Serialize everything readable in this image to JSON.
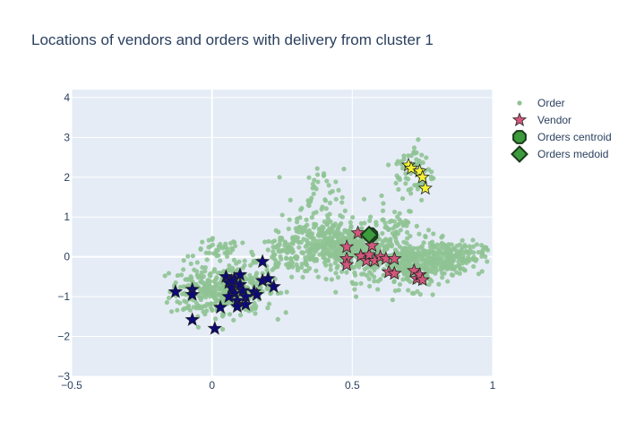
{
  "chart_data": {
    "type": "scatter",
    "title": "Locations of vendors and orders with delivery from cluster 1",
    "xlabel": "",
    "ylabel": "",
    "xlim": [
      -0.5,
      1.0
    ],
    "ylim": [
      -3.0,
      4.2
    ],
    "x_ticks": [
      -0.5,
      0,
      0.5,
      1
    ],
    "x_tick_labels": [
      "−0.5",
      "0",
      "0.5",
      "1"
    ],
    "y_ticks": [
      -3,
      -2,
      -1,
      0,
      1,
      2,
      3,
      4
    ],
    "y_tick_labels": [
      "−3",
      "−2",
      "−1",
      "0",
      "1",
      "2",
      "3",
      "4"
    ],
    "grid": true,
    "legend_position": "top-right",
    "colors": {
      "order": "#8fc393",
      "vendor_cluster_1": "#d3567b",
      "vendor_cluster_2": "#0d0a78",
      "vendor_cluster_3": "#f2f233",
      "centroid": "#3c9b3c",
      "medoid": "#3c9b3c",
      "plot_bg": "#e5ecf6"
    },
    "series": [
      {
        "name": "Order",
        "marker": "circle",
        "order_groups": [
          {
            "cx": -0.03,
            "cy": -0.85,
            "sx": 0.06,
            "sy": 0.35,
            "n": 170
          },
          {
            "cx": 0.1,
            "cy": -0.8,
            "sx": 0.06,
            "sy": 0.3,
            "n": 220
          },
          {
            "cx": 0.02,
            "cy": 0.15,
            "sx": 0.04,
            "sy": 0.15,
            "n": 40
          },
          {
            "cx": 0.28,
            "cy": 0.1,
            "sx": 0.06,
            "sy": 0.25,
            "n": 120
          },
          {
            "cx": 0.42,
            "cy": 0.3,
            "sx": 0.07,
            "sy": 0.3,
            "n": 250
          },
          {
            "cx": 0.55,
            "cy": 0.1,
            "sx": 0.08,
            "sy": 0.35,
            "n": 300
          },
          {
            "cx": 0.72,
            "cy": -0.2,
            "sx": 0.06,
            "sy": 0.3,
            "n": 250
          },
          {
            "cx": 0.85,
            "cy": 0.0,
            "sx": 0.06,
            "sy": 0.2,
            "n": 180
          },
          {
            "cx": 0.37,
            "cy": 1.2,
            "sx": 0.05,
            "sy": 0.5,
            "n": 70
          },
          {
            "cx": 0.64,
            "cy": 0.9,
            "sx": 0.04,
            "sy": 0.3,
            "n": 40
          },
          {
            "cx": 0.72,
            "cy": 2.1,
            "sx": 0.035,
            "sy": 0.4,
            "n": 70
          }
        ]
      },
      {
        "name": "Vendor",
        "marker": "star",
        "points": [
          {
            "x": -0.13,
            "y": -0.88,
            "c": 2
          },
          {
            "x": -0.07,
            "y": -0.82,
            "c": 2
          },
          {
            "x": -0.07,
            "y": -0.95,
            "c": 2
          },
          {
            "x": -0.07,
            "y": -1.58,
            "c": 2
          },
          {
            "x": 0.01,
            "y": -1.8,
            "c": 2
          },
          {
            "x": 0.03,
            "y": -1.27,
            "c": 2
          },
          {
            "x": 0.05,
            "y": -0.5,
            "c": 2
          },
          {
            "x": 0.06,
            "y": -0.65,
            "c": 2
          },
          {
            "x": 0.07,
            "y": -0.78,
            "c": 2
          },
          {
            "x": 0.08,
            "y": -0.55,
            "c": 2
          },
          {
            "x": 0.08,
            "y": -0.92,
            "c": 2
          },
          {
            "x": 0.09,
            "y": -1.1,
            "c": 2
          },
          {
            "x": 0.09,
            "y": -1.25,
            "c": 2
          },
          {
            "x": 0.1,
            "y": -0.45,
            "c": 2
          },
          {
            "x": 0.1,
            "y": -0.7,
            "c": 2
          },
          {
            "x": 0.11,
            "y": -0.85,
            "c": 2
          },
          {
            "x": 0.12,
            "y": -1.0,
            "c": 2
          },
          {
            "x": 0.12,
            "y": -1.2,
            "c": 2
          },
          {
            "x": 0.15,
            "y": -0.88,
            "c": 2
          },
          {
            "x": 0.16,
            "y": -0.95,
            "c": 2
          },
          {
            "x": 0.18,
            "y": -0.12,
            "c": 2
          },
          {
            "x": 0.18,
            "y": -0.6,
            "c": 2
          },
          {
            "x": 0.2,
            "y": -0.55,
            "c": 2
          },
          {
            "x": 0.22,
            "y": -0.75,
            "c": 2
          },
          {
            "x": 0.07,
            "y": -0.6,
            "c": 2
          },
          {
            "x": 0.06,
            "y": -1.0,
            "c": 2
          },
          {
            "x": 0.48,
            "y": 0.25,
            "c": 1
          },
          {
            "x": 0.48,
            "y": -0.05,
            "c": 1
          },
          {
            "x": 0.48,
            "y": -0.2,
            "c": 1
          },
          {
            "x": 0.52,
            "y": 0.6,
            "c": 1
          },
          {
            "x": 0.53,
            "y": 0.02,
            "c": 1
          },
          {
            "x": 0.55,
            "y": -0.1,
            "c": 1
          },
          {
            "x": 0.56,
            "y": 0.05,
            "c": 1
          },
          {
            "x": 0.57,
            "y": 0.28,
            "c": 1
          },
          {
            "x": 0.58,
            "y": -0.1,
            "c": 1
          },
          {
            "x": 0.6,
            "y": 0.0,
            "c": 1
          },
          {
            "x": 0.62,
            "y": -0.05,
            "c": 1
          },
          {
            "x": 0.63,
            "y": -0.38,
            "c": 1
          },
          {
            "x": 0.65,
            "y": -0.42,
            "c": 1
          },
          {
            "x": 0.65,
            "y": -0.05,
            "c": 1
          },
          {
            "x": 0.72,
            "y": -0.35,
            "c": 1
          },
          {
            "x": 0.73,
            "y": -0.55,
            "c": 1
          },
          {
            "x": 0.74,
            "y": -0.45,
            "c": 1
          },
          {
            "x": 0.75,
            "y": -0.58,
            "c": 1
          },
          {
            "x": 0.7,
            "y": 2.3,
            "c": 3
          },
          {
            "x": 0.71,
            "y": 2.22,
            "c": 3
          },
          {
            "x": 0.74,
            "y": 2.15,
            "c": 3
          },
          {
            "x": 0.75,
            "y": 2.0,
            "c": 3
          },
          {
            "x": 0.76,
            "y": 1.72,
            "c": 3
          }
        ]
      },
      {
        "name": "Orders centroid",
        "marker": "octagon",
        "points": [
          {
            "x": 0.565,
            "y": 0.55
          }
        ]
      },
      {
        "name": "Orders medoid",
        "marker": "diamond",
        "points": [
          {
            "x": 0.56,
            "y": 0.55
          }
        ]
      }
    ]
  }
}
